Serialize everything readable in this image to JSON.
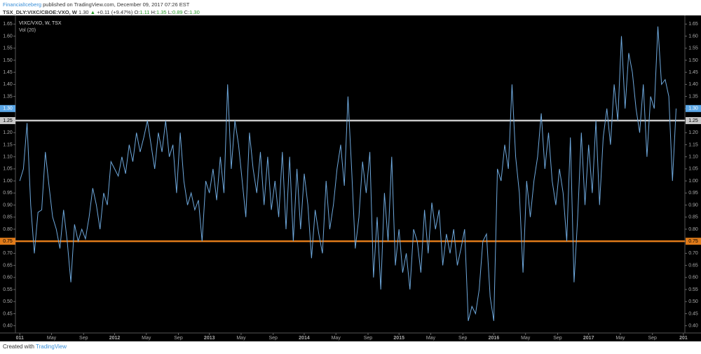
{
  "header": {
    "author": "FinancialIceberg",
    "published": "published on TradingView.com, December 09, 2017 07:26 EST",
    "symbol": "TSX_DLY:VIXC/CBOE:VXO, W",
    "last": "1.30",
    "arrow": "▲",
    "change": "+0.11 (+9.47%)",
    "o_label": "O:",
    "o": "1.11",
    "h_label": "H:",
    "h": "1.35",
    "l_label": "L:",
    "l": "0.89",
    "c_label": "C:",
    "c": "1.30"
  },
  "chart_data": {
    "type": "line",
    "legend": [
      "VIXC/VXO, W, TSX",
      "Vol (20)"
    ],
    "series": [
      {
        "name": "VIXC/VXO",
        "color": "#6ea8dc",
        "values": [
          1.0,
          1.05,
          1.24,
          0.9,
          0.7,
          0.87,
          0.88,
          1.12,
          0.98,
          0.85,
          0.8,
          0.72,
          0.88,
          0.75,
          0.58,
          0.82,
          0.75,
          0.8,
          0.76,
          0.85,
          0.97,
          0.9,
          0.8,
          0.95,
          0.9,
          1.08,
          1.05,
          1.02,
          1.1,
          1.03,
          1.15,
          1.08,
          1.2,
          1.12,
          1.18,
          1.25,
          1.15,
          1.05,
          1.2,
          1.12,
          1.25,
          1.1,
          1.15,
          0.95,
          1.2,
          1.0,
          0.9,
          0.95,
          0.88,
          0.92,
          0.75,
          1.0,
          0.95,
          1.05,
          0.92,
          1.1,
          0.95,
          1.4,
          1.05,
          1.25,
          1.15,
          1.0,
          0.85,
          1.2,
          1.05,
          0.95,
          1.12,
          0.9,
          1.1,
          0.88,
          1.0,
          0.85,
          1.12,
          0.8,
          1.1,
          0.75,
          1.05,
          0.8,
          1.03,
          0.9,
          0.68,
          0.88,
          0.78,
          0.7,
          1.0,
          0.8,
          0.9,
          1.05,
          1.15,
          0.98,
          1.35,
          1.05,
          0.72,
          0.85,
          1.08,
          0.95,
          1.12,
          0.6,
          0.85,
          0.55,
          0.95,
          0.75,
          1.1,
          0.65,
          0.8,
          0.62,
          0.7,
          0.55,
          0.8,
          0.75,
          0.62,
          0.88,
          0.7,
          0.91,
          0.8,
          0.88,
          0.65,
          0.78,
          0.7,
          0.8,
          0.65,
          0.72,
          0.8,
          0.42,
          0.48,
          0.45,
          0.55,
          0.75,
          0.78,
          0.52,
          0.42,
          1.05,
          1.0,
          1.15,
          1.05,
          1.4,
          1.1,
          0.95,
          0.62,
          1.0,
          0.85,
          1.0,
          1.1,
          1.28,
          1.05,
          1.2,
          1.0,
          0.9,
          1.05,
          0.95,
          0.75,
          1.18,
          0.58,
          0.85,
          1.2,
          0.9,
          1.15,
          0.95,
          1.25,
          0.9,
          1.18,
          1.3,
          1.15,
          1.4,
          1.25,
          1.6,
          1.3,
          1.53,
          1.45,
          1.3,
          1.2,
          1.4,
          1.1,
          1.35,
          1.3,
          1.64,
          1.4,
          1.42,
          1.35,
          1.0,
          1.3
        ]
      }
    ],
    "last_price": {
      "value": 1.3,
      "label": "1.30",
      "color": "#5aa6e6"
    },
    "levels": [
      {
        "value": 1.25,
        "color": "#c8c8c8"
      },
      {
        "value": 0.75,
        "color": "#e07b1a"
      }
    ],
    "xlim": [
      -1.2,
      182.4
    ],
    "xticks": [
      {
        "value": 0,
        "label": "011"
      },
      {
        "value": 8.7,
        "label": "May"
      },
      {
        "value": 17.5,
        "label": "Sep"
      },
      {
        "value": 26,
        "label": "2012"
      },
      {
        "value": 34.7,
        "label": "May"
      },
      {
        "value": 43.5,
        "label": "Sep"
      },
      {
        "value": 52,
        "label": "2013"
      },
      {
        "value": 60.7,
        "label": "May"
      },
      {
        "value": 69.5,
        "label": "Sep"
      },
      {
        "value": 78,
        "label": "2014"
      },
      {
        "value": 86.7,
        "label": "May"
      },
      {
        "value": 95.5,
        "label": "Sep"
      },
      {
        "value": 104,
        "label": "2015"
      },
      {
        "value": 112.7,
        "label": "May"
      },
      {
        "value": 121.5,
        "label": "Sep"
      },
      {
        "value": 130,
        "label": "2016"
      },
      {
        "value": 138.7,
        "label": "May"
      },
      {
        "value": 147.5,
        "label": "Sep"
      },
      {
        "value": 156,
        "label": "2017"
      },
      {
        "value": 164.7,
        "label": "May"
      },
      {
        "value": 173.5,
        "label": "Sep"
      },
      {
        "value": 182,
        "label": "201"
      }
    ],
    "ylim": [
      0.37,
      1.68
    ],
    "yticks": [
      {
        "value": 0.4,
        "label": "0.40"
      },
      0.45,
      {
        "value": 0.5,
        "label": "0.50"
      },
      0.55,
      {
        "value": 0.6,
        "label": "0.60"
      },
      0.65,
      {
        "value": 0.7,
        "label": "0.70"
      },
      0.75,
      {
        "value": 0.8,
        "label": "0.80"
      },
      0.85,
      {
        "value": 0.9,
        "label": "0.90"
      },
      0.95,
      {
        "value": 1.0,
        "label": "1.00"
      },
      1.05,
      {
        "value": 1.1,
        "label": "1.10"
      },
      1.15,
      {
        "value": 1.2,
        "label": "1.20"
      },
      1.25,
      {
        "value": 1.3,
        "label": "1.30"
      },
      1.35,
      {
        "value": 1.4,
        "label": "1.40"
      },
      1.45,
      {
        "value": 1.5,
        "label": "1.50"
      },
      1.55,
      {
        "value": 1.6,
        "label": "1.60"
      },
      1.65
    ],
    "grid": false
  },
  "footer": {
    "text": "Created with",
    "brand": "TradingView"
  }
}
